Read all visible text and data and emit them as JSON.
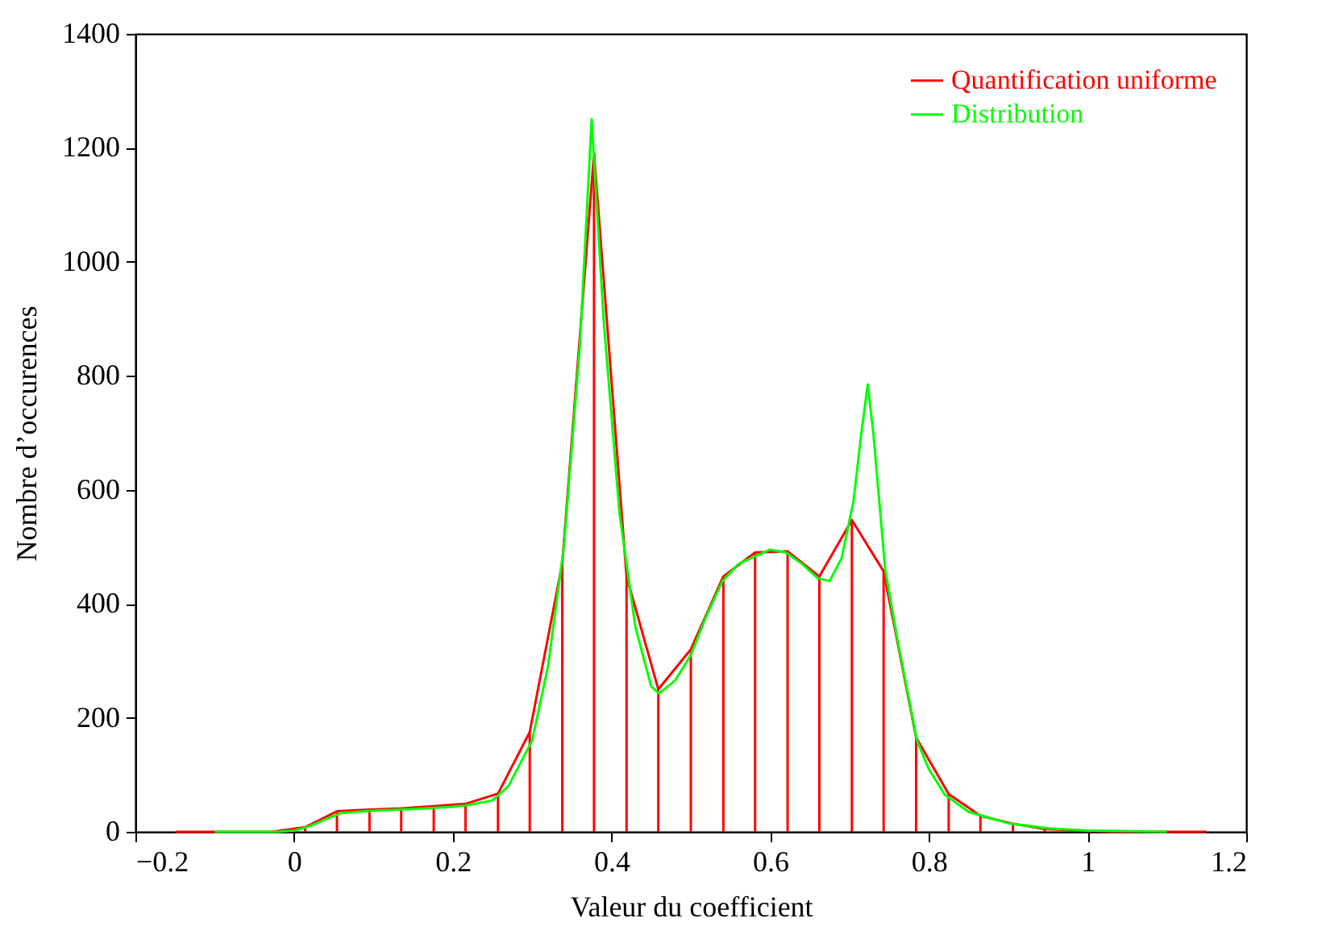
{
  "chart_data": {
    "type": "line",
    "xlabel": "Valeur du coefficient",
    "ylabel": "Nombre d’occurences",
    "xlim": [
      -0.2,
      1.2
    ],
    "ylim": [
      0,
      1400
    ],
    "xticks": [
      {
        "value": -0.2,
        "label": "−0.2"
      },
      0,
      0.2,
      0.4,
      0.6,
      0.8,
      1,
      1.2
    ],
    "yticks": [
      0,
      200,
      400,
      600,
      800,
      1000,
      1200,
      1400
    ],
    "grid": false,
    "legend": "top right",
    "marker": "none",
    "line_style": "solid",
    "series": [
      {
        "type": "bar",
        "color": "#ff0000",
        "x": [
          -0.149,
          -0.108,
          -0.068,
          -0.027,
          0.014,
          0.054,
          0.095,
          0.135,
          0.176,
          0.216,
          0.257,
          0.297,
          0.338,
          0.378,
          0.419,
          0.459,
          0.5,
          0.541,
          0.581,
          0.622,
          0.662,
          0.703,
          0.743,
          0.784,
          0.825,
          0.865,
          0.906,
          0.946,
          0.987,
          1.028,
          1.068,
          1.109,
          1.15
        ],
        "values": [
          0,
          0,
          0,
          0,
          8,
          36,
          39,
          41,
          45,
          49,
          67,
          175,
          471,
          1190,
          448,
          250,
          320,
          448,
          490,
          492,
          448,
          547,
          457,
          165,
          66,
          28,
          14,
          5,
          2,
          0,
          0,
          0,
          0
        ]
      },
      {
        "name": "Quantification uniforme",
        "color": "#ff0000",
        "x": [
          -0.149,
          -0.108,
          -0.068,
          -0.027,
          0.014,
          0.054,
          0.095,
          0.135,
          0.176,
          0.216,
          0.257,
          0.297,
          0.338,
          0.378,
          0.419,
          0.459,
          0.5,
          0.541,
          0.581,
          0.622,
          0.662,
          0.703,
          0.743,
          0.784,
          0.825,
          0.865,
          0.906,
          0.946,
          0.987,
          1.028,
          1.068,
          1.109,
          1.15
        ],
        "values": [
          0,
          0,
          0,
          0,
          8,
          36,
          39,
          41,
          45,
          49,
          67,
          175,
          471,
          1190,
          448,
          250,
          320,
          448,
          490,
          492,
          448,
          547,
          457,
          165,
          66,
          28,
          14,
          5,
          2,
          0,
          0,
          0,
          0
        ]
      },
      {
        "name": "Distribution",
        "color": "#00ff00",
        "x": [
          -0.1,
          -0.02,
          0,
          0.02,
          0.04,
          0.06,
          0.1,
          0.15,
          0.2,
          0.22,
          0.25,
          0.27,
          0.3,
          0.32,
          0.34,
          0.36,
          0.375,
          0.39,
          0.41,
          0.43,
          0.45,
          0.46,
          0.48,
          0.5,
          0.52,
          0.54,
          0.56,
          0.6,
          0.62,
          0.64,
          0.66,
          0.675,
          0.69,
          0.705,
          0.715,
          0.723,
          0.73,
          0.745,
          0.76,
          0.785,
          0.8,
          0.82,
          0.85,
          0.9,
          0.95,
          1.0,
          1.1
        ],
        "values": [
          0,
          0,
          2,
          10,
          22,
          33,
          37,
          40,
          44,
          47,
          55,
          80,
          160,
          290,
          500,
          850,
          1250,
          900,
          560,
          360,
          255,
          243,
          265,
          310,
          380,
          440,
          470,
          495,
          490,
          470,
          445,
          440,
          480,
          580,
          700,
          785,
          700,
          460,
          340,
          160,
          110,
          65,
          35,
          15,
          6,
          2,
          0
        ]
      }
    ]
  }
}
